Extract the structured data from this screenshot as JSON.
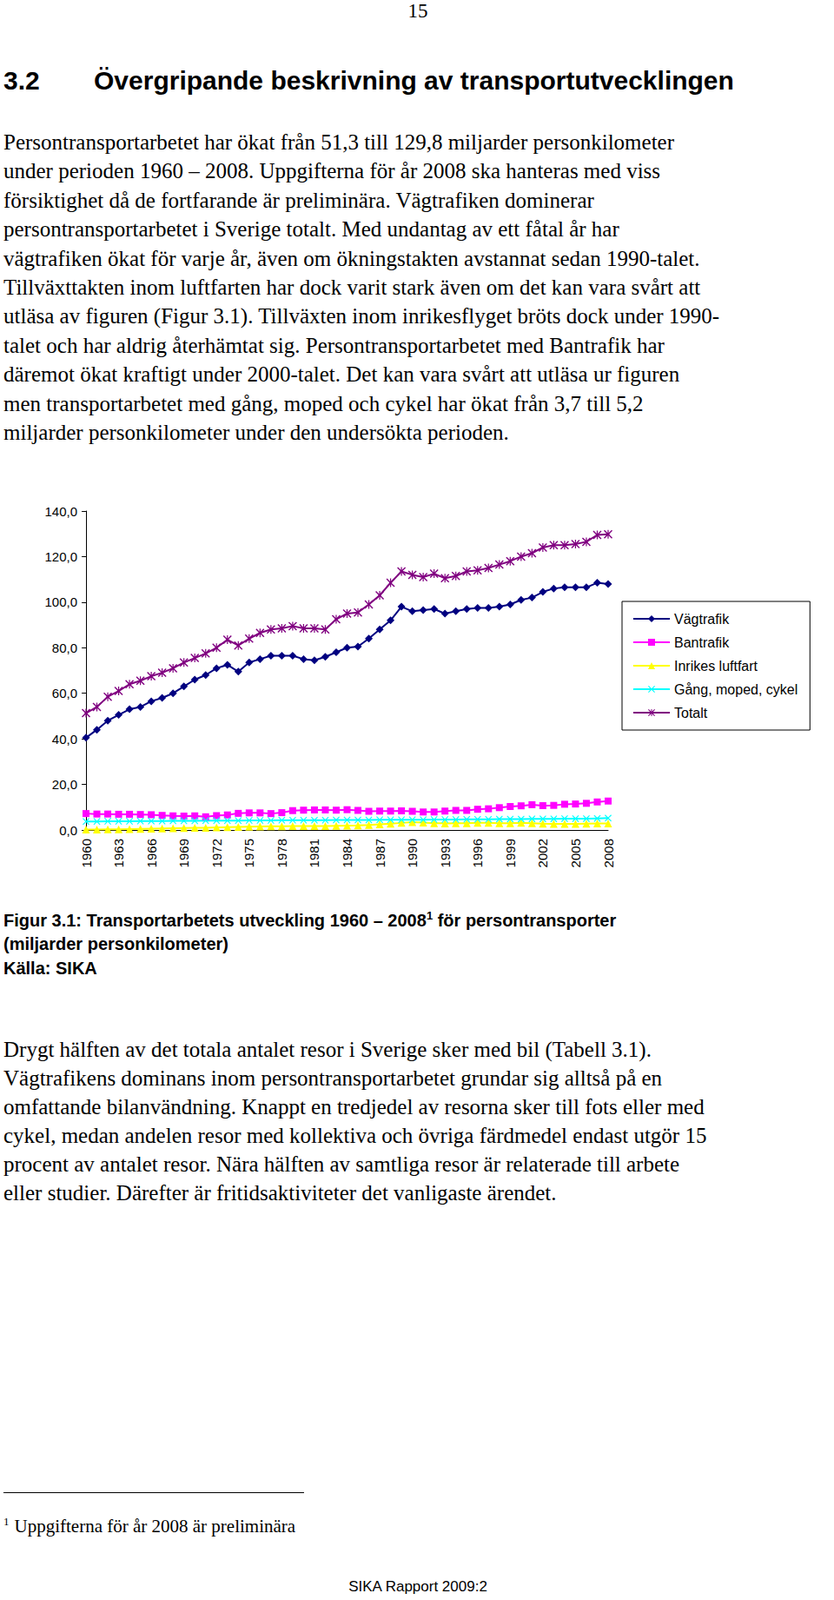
{
  "page_number": "15",
  "heading": {
    "number": "3.2",
    "title": "Övergripande beskrivning av transportutvecklingen"
  },
  "paragraph_1": [
    "Persontransportarbetet har ökat från 51,3 till 129,8 miljarder personkilometer",
    "under perioden 1960 – 2008. Uppgifterna för år 2008 ska hanteras med viss",
    "försiktighet då de fortfarande är preliminära. Vägtrafiken dominerar",
    "persontransportarbetet i Sverige totalt. Med undantag av ett fåtal år har",
    "vägtrafiken ökat för varje år, även om ökningstakten avstannat sedan 1990-talet.",
    "Tillväxttakten inom luftfarten har dock varit stark även om det kan vara svårt att",
    "utläsa av figuren (Figur 3.1). Tillväxten inom inrikesflyget bröts dock under 1990-",
    "talet och har aldrig återhämtat sig. Persontransportarbetet med Bantrafik har",
    "däremot ökat kraftigt under 2000-talet. Det kan vara svårt att utläsa ur figuren",
    "men transportarbetet med gång, moped och cykel har ökat från 3,7 till 5,2",
    "miljarder personkilometer under den undersökta perioden."
  ],
  "chart_data": {
    "type": "line",
    "categories": [
      "1960",
      null,
      null,
      "1963",
      null,
      null,
      "1966",
      null,
      null,
      "1969",
      null,
      null,
      "1972",
      null,
      null,
      "1975",
      null,
      null,
      "1978",
      null,
      null,
      "1981",
      null,
      null,
      "1984",
      null,
      null,
      "1987",
      null,
      null,
      "1990",
      null,
      null,
      "1993",
      null,
      null,
      "1996",
      null,
      null,
      "1999",
      null,
      null,
      "2002",
      null,
      null,
      "2005",
      null,
      null,
      "2008"
    ],
    "ylim": [
      0,
      140
    ],
    "yticks": [
      {
        "value": 0,
        "label": "0,0"
      },
      {
        "value": 20,
        "label": "20,0"
      },
      {
        "value": 40,
        "label": "40,0"
      },
      {
        "value": 60,
        "label": "60,0"
      },
      {
        "value": 80,
        "label": "80,0"
      },
      {
        "value": 100,
        "label": "100,0"
      },
      {
        "value": 120,
        "label": "120,0"
      },
      {
        "value": 140,
        "label": "140,0"
      }
    ],
    "grid": false,
    "legend": "right",
    "series": [
      {
        "name": "Vägtrafik",
        "color": "#000080",
        "marker": "diamond",
        "values": [
          40.5,
          44,
          48,
          50.5,
          53,
          54,
          56.5,
          58,
          60,
          63,
          66,
          68,
          71,
          72.5,
          69.5,
          73.5,
          75,
          76.5,
          76.5,
          76.5,
          75,
          74.5,
          76,
          78,
          80,
          80.5,
          84,
          88,
          92,
          98,
          96,
          96.5,
          97,
          95,
          96,
          97,
          97.5,
          97.5,
          98,
          99,
          101,
          102,
          104.5,
          106,
          106.5,
          106.5,
          106.5,
          108.5,
          108
        ]
      },
      {
        "name": "Bantrafik",
        "color": "#FF00FF",
        "marker": "square",
        "values": [
          7.2,
          7.0,
          7.0,
          6.9,
          6.9,
          6.8,
          6.7,
          6.4,
          6.2,
          6.1,
          6.2,
          5.8,
          6.3,
          6.6,
          7.3,
          7.5,
          7.5,
          7.2,
          7.6,
          8.5,
          8.7,
          8.8,
          8.8,
          8.7,
          8.9,
          8.6,
          8.2,
          8.3,
          8.3,
          8.4,
          8.2,
          7.9,
          7.9,
          8.3,
          8.6,
          8.6,
          9.1,
          9.3,
          9.8,
          10.3,
          10.6,
          11.1,
          10.7,
          10.8,
          11.3,
          11.4,
          11.7,
          12.3,
          12.7
        ]
      },
      {
        "name": "Inrikes luftfart",
        "color": "#FFFF00",
        "marker": "triangle",
        "values": [
          0.2,
          0.2,
          0.3,
          0.3,
          0.4,
          0.5,
          0.6,
          0.7,
          0.8,
          0.9,
          1.0,
          1.0,
          1.1,
          1.2,
          1.3,
          1.4,
          1.5,
          1.6,
          1.6,
          1.7,
          1.7,
          1.7,
          1.7,
          1.8,
          1.9,
          2.0,
          2.2,
          2.5,
          2.8,
          3.1,
          3.4,
          3.2,
          3.0,
          2.9,
          3.0,
          3.0,
          3.1,
          3.1,
          3.0,
          3.0,
          3.1,
          3.0,
          2.8,
          2.7,
          2.7,
          2.7,
          2.8,
          2.9,
          2.9
        ]
      },
      {
        "name": "Gång, moped, cykel",
        "color": "#00FFFF",
        "marker": "x",
        "values": [
          3.7,
          3.7,
          3.8,
          3.8,
          3.8,
          3.9,
          3.9,
          3.9,
          4.0,
          4.0,
          4.0,
          4.1,
          4.1,
          4.1,
          4.1,
          4.2,
          4.2,
          4.2,
          4.3,
          4.3,
          4.3,
          4.3,
          4.3,
          4.4,
          4.4,
          4.4,
          4.4,
          4.5,
          4.5,
          4.5,
          4.5,
          4.5,
          4.6,
          4.6,
          4.6,
          4.7,
          4.7,
          4.7,
          4.8,
          4.8,
          4.8,
          4.9,
          4.9,
          4.9,
          5.0,
          5.0,
          5.0,
          5.1,
          5.2
        ]
      },
      {
        "name": "Totalt",
        "color": "#800080",
        "marker": "star",
        "values": [
          51.3,
          54,
          58.5,
          61,
          64,
          65.5,
          67.5,
          69,
          71,
          73.5,
          75.5,
          77.5,
          80,
          83.5,
          81,
          84,
          86.5,
          88,
          88.5,
          89.5,
          88.5,
          88.5,
          88,
          92.5,
          95,
          95.5,
          99,
          103,
          108.5,
          113.5,
          112,
          111,
          112.5,
          110.5,
          111.5,
          113.5,
          114,
          115,
          116.5,
          118,
          120,
          121.5,
          124,
          125,
          125,
          125.5,
          126.5,
          129.5,
          129.8
        ]
      }
    ]
  },
  "caption": {
    "text": "Figur 3.1: Transportarbetets utveckling 1960 – 2008",
    "footnote_ref": "1",
    "text_after": " för persontransporter",
    "line_2": "(miljarder personkilometer)",
    "source": "Källa: SIKA"
  },
  "paragraph_2": [
    "Drygt hälften av det totala antalet resor i Sverige sker med bil (Tabell 3.1).",
    "Vägtrafikens dominans inom persontransportarbetet grundar sig alltså på en",
    "omfattande bilanvändning. Knappt en tredjedel av resorna sker till fots eller med",
    "cykel, medan andelen resor med kollektiva och övriga färdmedel endast utgör 15",
    "procent av antalet resor. Nära hälften av samtliga resor är relaterade till arbete",
    "eller studier. Därefter är fritidsaktiviteter det vanligaste ärendet."
  ],
  "footnote": {
    "marker": "1",
    "text": "Uppgifterna för år 2008 är preliminära"
  },
  "footer": "SIKA Rapport 2009:2"
}
